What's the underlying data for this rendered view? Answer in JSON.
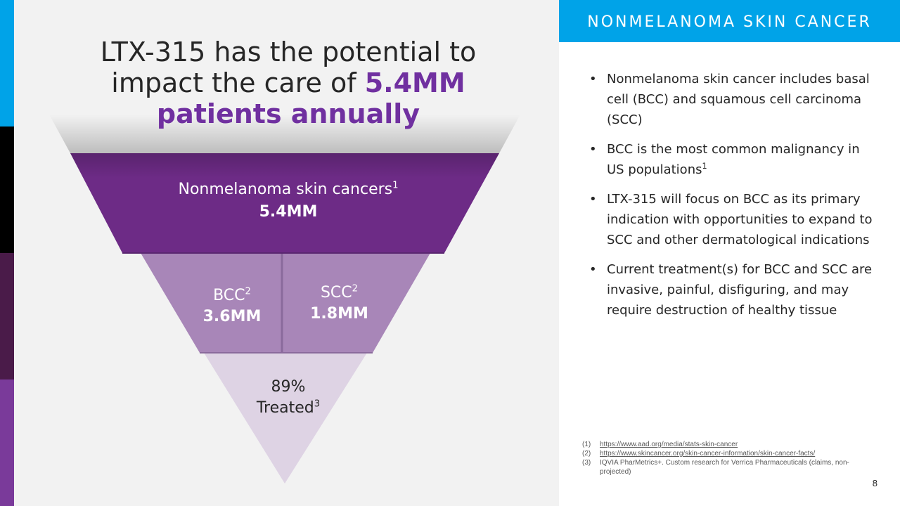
{
  "headline": {
    "line1": "LTX-315 has the potential to",
    "line2_prefix": "impact the care of ",
    "line2_highlight": "5.4MM",
    "line3_highlight": "patients annually"
  },
  "funnel": {
    "nonmelanoma": {
      "label": "Nonmelanoma skin cancers",
      "ref": "1",
      "value": "5.4MM"
    },
    "bcc": {
      "label": "BCC",
      "ref": "2",
      "value": "3.6MM"
    },
    "scc": {
      "label": "SCC",
      "ref": "2",
      "value": "1.8MM"
    },
    "treated": {
      "percent": "89%",
      "label": "Treated",
      "ref": "3"
    }
  },
  "section_title": "NONMELANOMA SKIN CANCER",
  "bullets": [
    {
      "text": "Nonmelanoma skin cancer includes basal cell (BCC) and squamous cell carcinoma (SCC)",
      "ref": ""
    },
    {
      "text": "BCC is the most common malignancy in US populations",
      "ref": "1"
    },
    {
      "text": "LTX-315 will focus on BCC as its primary indication with opportunities to expand to SCC and other dermatological indications",
      "ref": ""
    },
    {
      "text": "Current treatment(s) for BCC and SCC are invasive, painful, disfiguring, and may require destruction of healthy tissue",
      "ref": ""
    }
  ],
  "bullet_symbol": "•",
  "footnotes": [
    {
      "num": "(1)",
      "text": "https://www.aad.org/media/stats-skin-cancer",
      "is_link": true
    },
    {
      "num": "(2)",
      "text": "https://www.skincancer.org/skin-cancer-information/skin-cancer-facts/",
      "is_link": true
    },
    {
      "num": "(3)",
      "text": "IQVIA PharMetrics+. Custom research for Verrica Pharmaceuticals (claims, non-projected)",
      "is_link": false
    }
  ],
  "page_number": "8",
  "colors": {
    "purple_dark": "#6d2b86",
    "purple_mid": "#a886b8",
    "purple_light": "#ded3e4",
    "accent_blue": "#00a3e8",
    "headline_highlight": "#7030a0",
    "edge_black": "#000000",
    "edge_plum": "#4a1b49",
    "edge_purple": "#7a3a9a"
  }
}
